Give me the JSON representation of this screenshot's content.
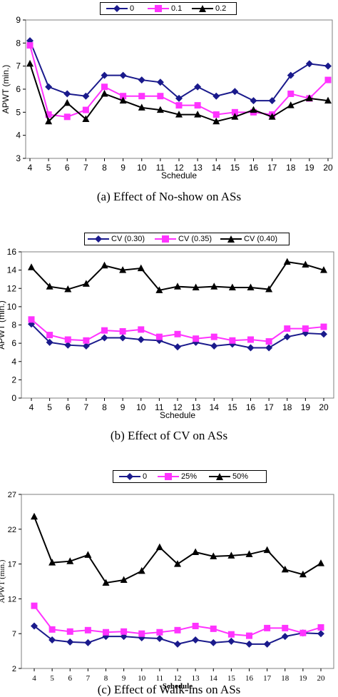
{
  "chart_data": [
    {
      "type": "line",
      "categories": [
        "4",
        "5",
        "6",
        "7",
        "8",
        "9",
        "10",
        "11",
        "12",
        "13",
        "14",
        "15",
        "16",
        "17",
        "18",
        "19",
        "20"
      ],
      "series": [
        {
          "name": "0",
          "color": "#1a1a8c",
          "marker": "diamond",
          "values": [
            8.1,
            6.1,
            5.8,
            5.7,
            6.6,
            6.6,
            6.4,
            6.3,
            5.6,
            6.1,
            5.7,
            5.9,
            5.5,
            5.5,
            6.6,
            7.1,
            7.0
          ]
        },
        {
          "name": "0.1",
          "color": "#ff33ff",
          "marker": "square",
          "values": [
            7.9,
            4.9,
            4.8,
            5.1,
            6.1,
            5.7,
            5.7,
            5.7,
            5.3,
            5.3,
            4.9,
            5.0,
            5.0,
            4.9,
            5.8,
            5.6,
            6.4
          ]
        },
        {
          "name": "0.2",
          "color": "#000000",
          "marker": "triangle",
          "values": [
            7.1,
            4.6,
            5.4,
            4.7,
            5.8,
            5.5,
            5.2,
            5.1,
            4.9,
            4.9,
            4.6,
            4.8,
            5.1,
            4.8,
            5.3,
            5.6,
            5.5
          ]
        }
      ],
      "ylim": [
        3,
        9
      ],
      "yticks": [
        "3",
        "4",
        "5",
        "6",
        "7",
        "8",
        "9"
      ],
      "ylabel": "APWT (min.)",
      "xlabel": "Schedule",
      "caption": "(a)   Effect of No-show on ASs"
    },
    {
      "type": "line",
      "categories": [
        "4",
        "5",
        "6",
        "7",
        "8",
        "9",
        "10",
        "11",
        "12",
        "13",
        "14",
        "15",
        "16",
        "17",
        "18",
        "19",
        "20"
      ],
      "series": [
        {
          "name": "CV (0.30)",
          "color": "#1a1a8c",
          "marker": "diamond",
          "values": [
            8.1,
            6.1,
            5.8,
            5.7,
            6.6,
            6.6,
            6.4,
            6.3,
            5.6,
            6.1,
            5.7,
            5.9,
            5.5,
            5.5,
            6.7,
            7.1,
            7.0
          ]
        },
        {
          "name": "CV (0.35)",
          "color": "#ff33ff",
          "marker": "square",
          "values": [
            8.6,
            6.9,
            6.4,
            6.3,
            7.4,
            7.3,
            7.5,
            6.7,
            7.0,
            6.5,
            6.7,
            6.3,
            6.4,
            6.2,
            7.6,
            7.6,
            7.8
          ]
        },
        {
          "name": "CV (0.40)",
          "color": "#000000",
          "marker": "triangle",
          "values": [
            14.3,
            12.2,
            11.9,
            12.5,
            14.5,
            14.0,
            14.2,
            11.8,
            12.2,
            12.1,
            12.2,
            12.1,
            12.1,
            11.9,
            14.9,
            14.6,
            14.0
          ]
        }
      ],
      "ylim": [
        0,
        16
      ],
      "yticks": [
        "0",
        "2",
        "4",
        "6",
        "8",
        "10",
        "12",
        "14",
        "16"
      ],
      "ylabel": "APWT (min.)",
      "xlabel": "Schedule",
      "caption": "(b)   Effect of CV on ASs"
    },
    {
      "type": "line",
      "categories": [
        "4",
        "5",
        "6",
        "7",
        "8",
        "9",
        "10",
        "11",
        "12",
        "13",
        "14",
        "15",
        "16",
        "17",
        "18",
        "19",
        "20"
      ],
      "series": [
        {
          "name": "0",
          "color": "#1a1a8c",
          "marker": "diamond",
          "values": [
            8.1,
            6.1,
            5.8,
            5.7,
            6.6,
            6.6,
            6.4,
            6.3,
            5.5,
            6.1,
            5.7,
            5.9,
            5.5,
            5.5,
            6.6,
            7.1,
            7.0
          ]
        },
        {
          "name": "25%",
          "color": "#ff33ff",
          "marker": "square",
          "values": [
            11.0,
            7.6,
            7.3,
            7.5,
            7.2,
            7.3,
            7.0,
            7.2,
            7.5,
            8.1,
            7.7,
            6.9,
            6.7,
            7.8,
            7.8,
            7.1,
            7.9
          ]
        },
        {
          "name": "50%",
          "color": "#000000",
          "marker": "triangle",
          "values": [
            23.8,
            17.2,
            17.4,
            18.3,
            14.3,
            14.7,
            16.0,
            19.4,
            17.0,
            18.7,
            18.1,
            18.2,
            18.4,
            19.0,
            16.2,
            15.5,
            17.1
          ]
        }
      ],
      "ylim": [
        2,
        27
      ],
      "yticks": [
        "2",
        "7",
        "12",
        "17",
        "22",
        "27"
      ],
      "ylabel": "APWT (min.)",
      "xlabel": "Schedule",
      "caption": "(c)  Effect of Walk-ins on ASs"
    }
  ]
}
